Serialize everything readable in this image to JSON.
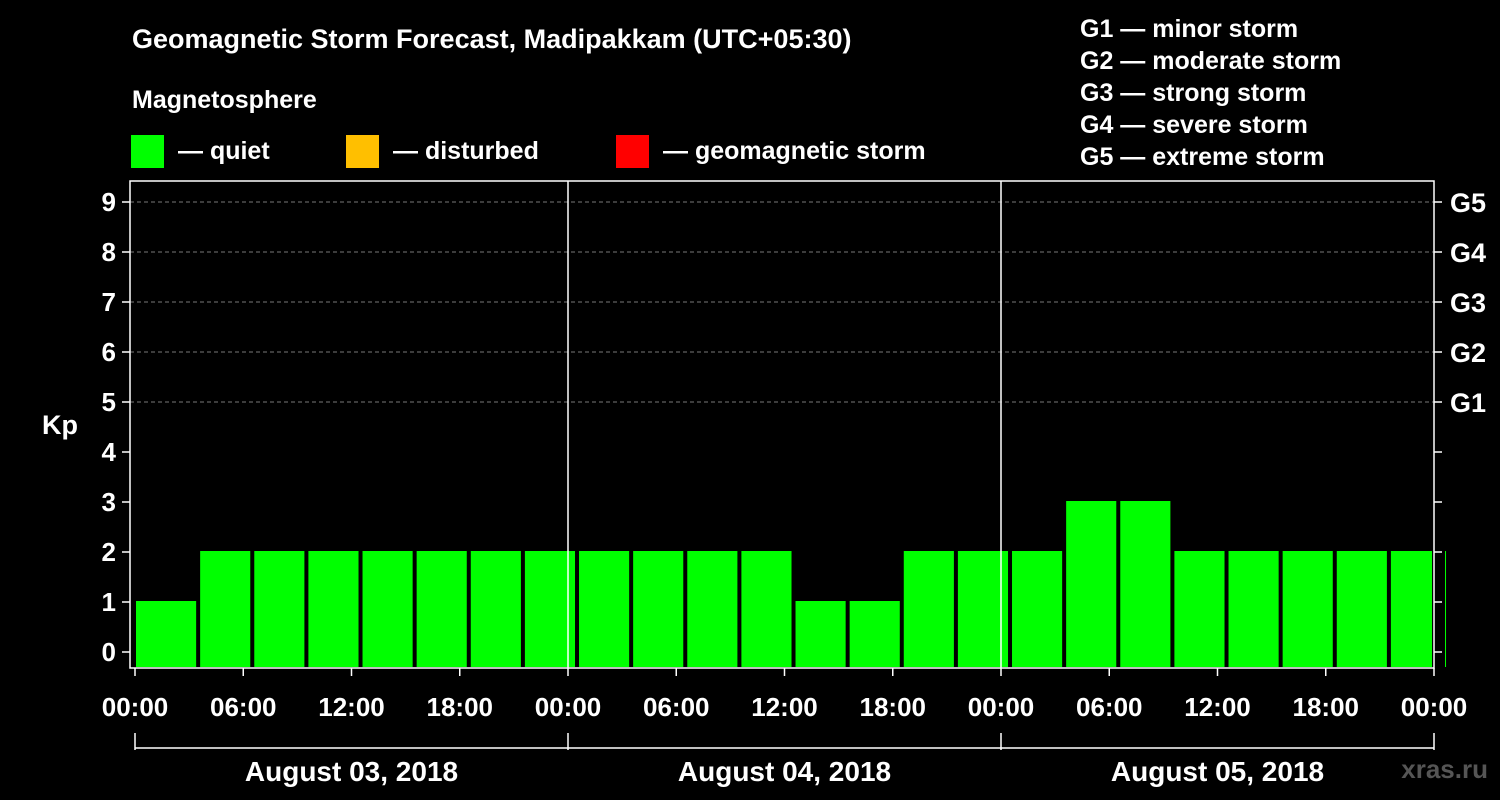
{
  "header": {
    "title": "Geomagnetic Storm Forecast, Madipakkam (UTC+05:30)",
    "subtitle": "Magnetosphere",
    "watermark": "xras.ru"
  },
  "legend": [
    {
      "label": "— quiet",
      "color": "#00ff00"
    },
    {
      "label": "— disturbed",
      "color": "#ffbf00"
    },
    {
      "label": "— geomagnetic storm",
      "color": "#ff0000"
    }
  ],
  "storm_scale": [
    "G1 — minor storm",
    "G2 — moderate storm",
    "G3 — strong storm",
    "G4 — severe storm",
    "G5 — extreme storm"
  ],
  "chart_data": {
    "type": "bar",
    "title": "Geomagnetic Storm Forecast, Madipakkam (UTC+05:30)",
    "ylabel": "Kp",
    "ylim": [
      0,
      9
    ],
    "yticks": [
      0,
      1,
      2,
      3,
      4,
      5,
      6,
      7,
      8,
      9
    ],
    "g_levels": [
      {
        "kp": 5,
        "label": "G1"
      },
      {
        "kp": 6,
        "label": "G2"
      },
      {
        "kp": 7,
        "label": "G3"
      },
      {
        "kp": 8,
        "label": "G4"
      },
      {
        "kp": 9,
        "label": "G5"
      }
    ],
    "x_tick_labels": [
      "00:00",
      "06:00",
      "12:00",
      "18:00",
      "00:00",
      "06:00",
      "12:00",
      "18:00",
      "00:00",
      "06:00",
      "12:00",
      "18:00",
      "00:00"
    ],
    "days": [
      "August 03, 2018",
      "August 04, 2018",
      "August 05, 2018"
    ],
    "series": [
      {
        "name": "Kp",
        "values": [
          1,
          2,
          2,
          2,
          2,
          2,
          2,
          2,
          2,
          2,
          2,
          2,
          1,
          1,
          2,
          2,
          2,
          3,
          3,
          2,
          2,
          2,
          2,
          2,
          2
        ]
      }
    ],
    "start_hour_offset": 0.5,
    "bar_interval_hours": 3,
    "span_hours": 72,
    "colors": {
      "quiet": "#00ff00",
      "disturbed": "#ffbf00",
      "storm": "#ff0000"
    }
  }
}
